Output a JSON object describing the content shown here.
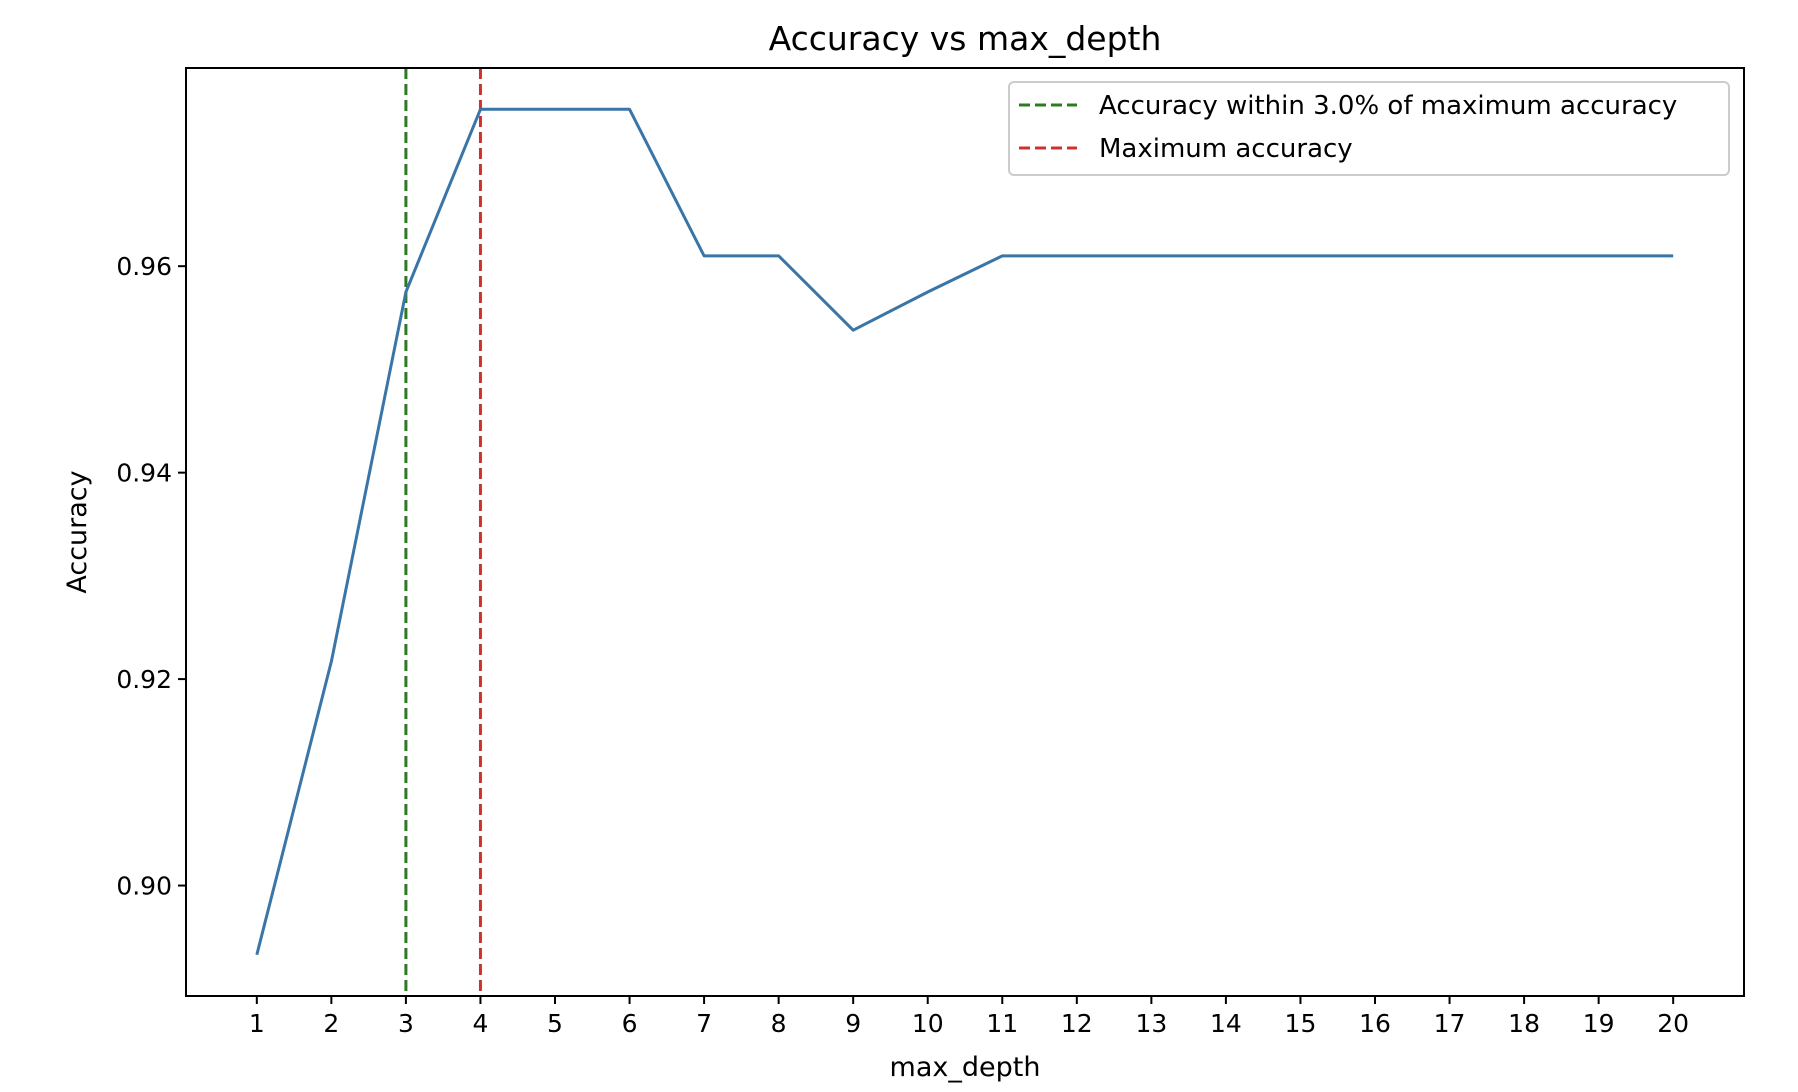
{
  "chart_data": {
    "type": "line",
    "title": "Accuracy vs max_depth",
    "xlabel": "max_depth",
    "ylabel": "Accuracy",
    "x": [
      1,
      2,
      3,
      4,
      5,
      6,
      7,
      8,
      9,
      10,
      11,
      12,
      13,
      14,
      15,
      16,
      17,
      18,
      19,
      20
    ],
    "series": [
      {
        "values": [
          0.8933,
          0.9217,
          0.9575,
          0.9752,
          0.9752,
          0.9752,
          0.961,
          0.961,
          0.9538,
          0.9575,
          0.961,
          0.961,
          0.961,
          0.961,
          0.961,
          0.961,
          0.961,
          0.961,
          0.961,
          0.961
        ],
        "color": "#3a75a8"
      }
    ],
    "vlines": [
      {
        "x": 3,
        "color": "#2e7a22",
        "style": "dashed"
      },
      {
        "x": 4,
        "color": "#d0312d",
        "style": "dashed"
      }
    ],
    "xticks": [
      "1",
      "2",
      "3",
      "4",
      "5",
      "6",
      "7",
      "8",
      "9",
      "10",
      "11",
      "12",
      "13",
      "14",
      "15",
      "16",
      "17",
      "18",
      "19",
      "20"
    ],
    "yticks": [
      0.9,
      0.92,
      0.94,
      0.96
    ],
    "ytick_labels": [
      "0.90",
      "0.92",
      "0.94",
      "0.96"
    ],
    "xlim": [
      0.05,
      20.95
    ],
    "ylim": [
      0.8893,
      0.9792
    ],
    "grid": false,
    "legend": {
      "placement": "upper-right",
      "entries": [
        {
          "label": "Accuracy within 3.0% of maximum accuracy",
          "color": "#2e7a22",
          "style": "dashed"
        },
        {
          "label": "Maximum accuracy",
          "color": "#d0312d",
          "style": "dashed"
        }
      ]
    }
  }
}
